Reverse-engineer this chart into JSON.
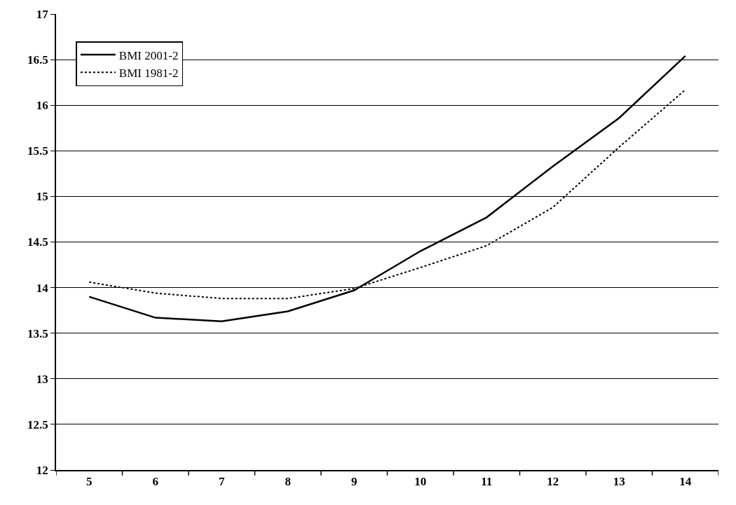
{
  "chart_data": {
    "type": "line",
    "categories": [
      "5",
      "6",
      "7",
      "8",
      "9",
      "10",
      "11",
      "12",
      "13",
      "14"
    ],
    "series": [
      {
        "name": "BMI 2001-2",
        "color": "#000000",
        "line_style": "solid",
        "values": [
          13.9,
          13.67,
          13.63,
          13.74,
          13.97,
          14.4,
          14.77,
          15.33,
          15.86,
          16.54
        ]
      },
      {
        "name": "BMI 1981-2",
        "color": "#000000",
        "line_style": "dotted",
        "values": [
          14.06,
          13.94,
          13.88,
          13.88,
          13.99,
          14.22,
          14.46,
          14.88,
          15.54,
          16.17
        ]
      }
    ],
    "ylim": [
      12,
      17
    ],
    "yticks": [
      12,
      12.5,
      13,
      13.5,
      14,
      14.5,
      15,
      15.5,
      16,
      16.5,
      17
    ],
    "grid": "y",
    "legend": "top left",
    "marker": "none"
  }
}
